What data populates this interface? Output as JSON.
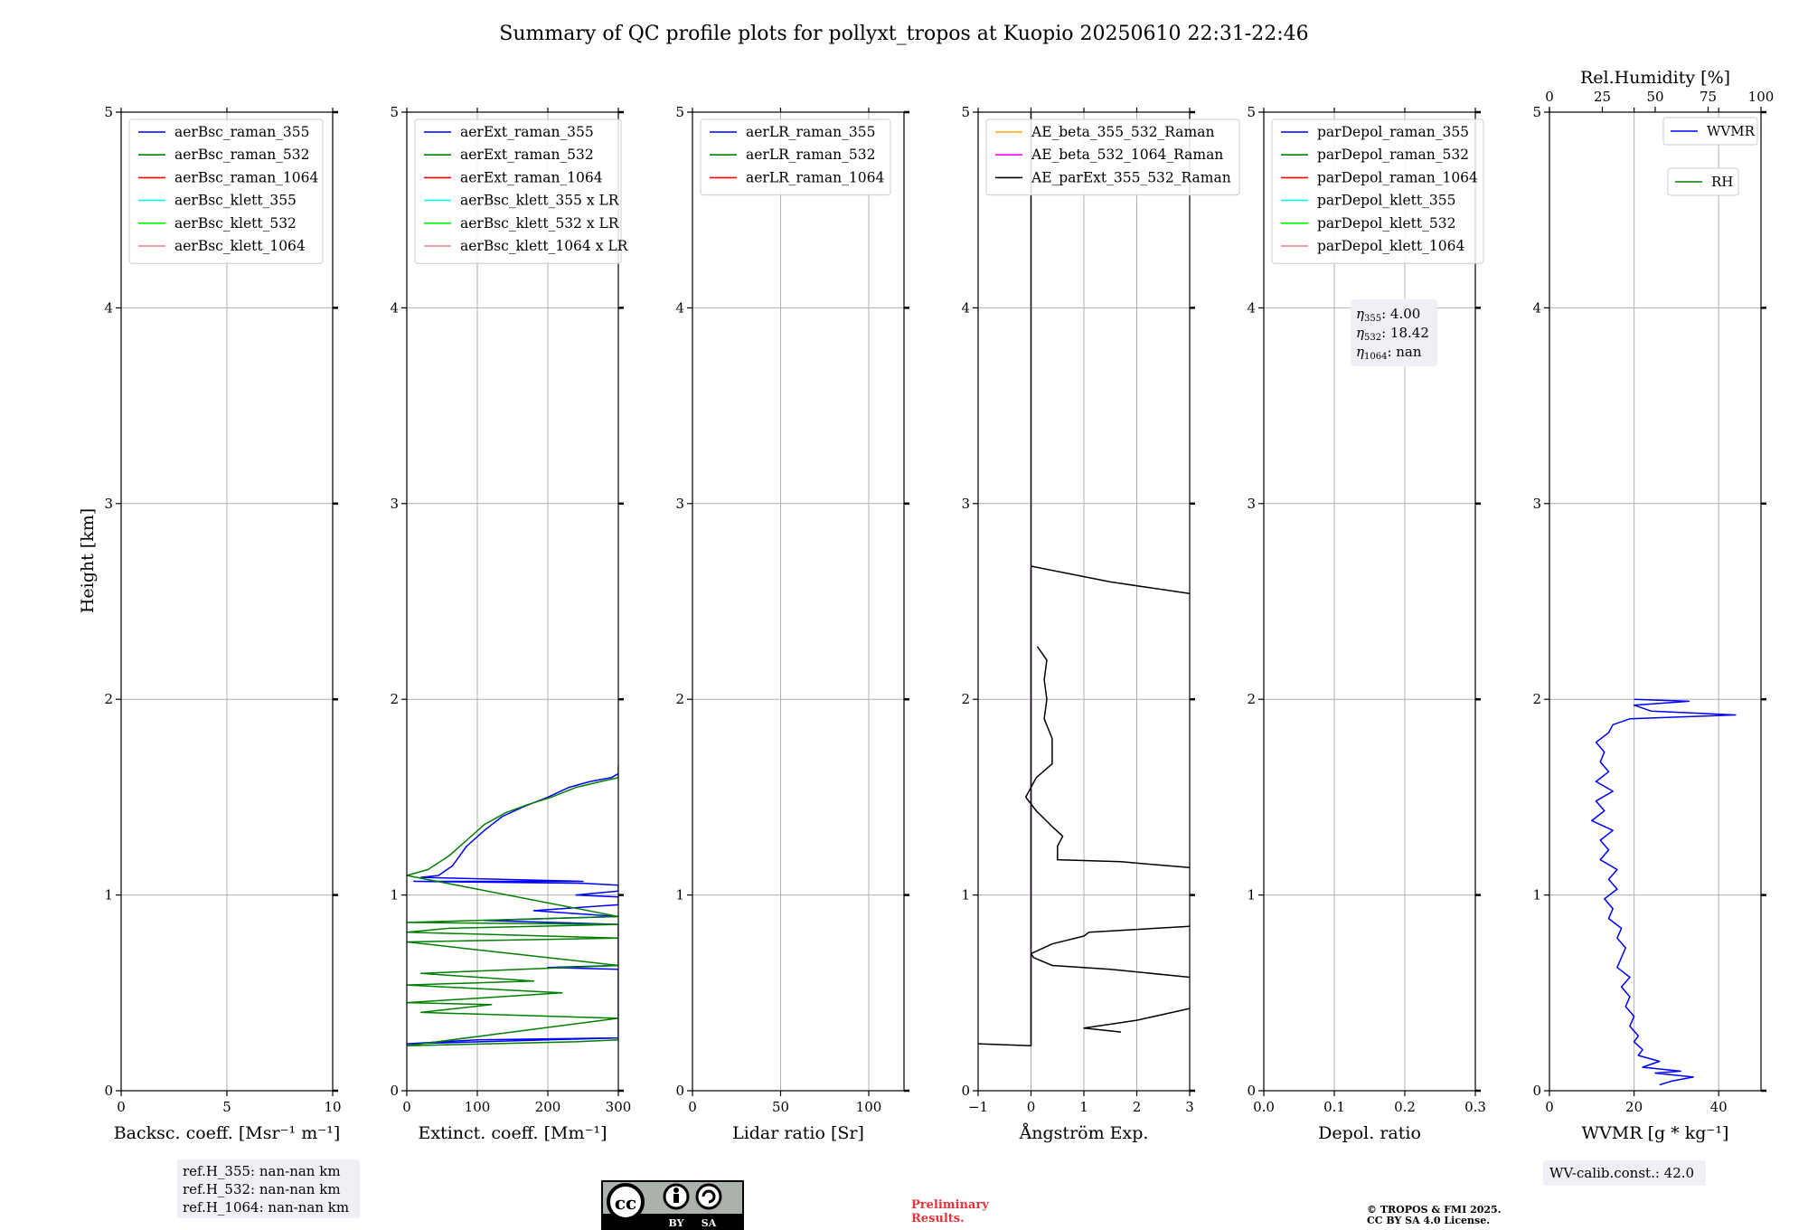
{
  "title": "Summary of QC profile plots for pollyxt_tropos at Kuopio 20250610 22:31-22:46",
  "y_axis": {
    "label": "Height [km]",
    "range": [
      0,
      5
    ],
    "ticks": [
      "0",
      "1",
      "2",
      "3",
      "4",
      "5"
    ]
  },
  "chart_data": [
    {
      "id": "bsc",
      "type": "line",
      "xlabel": "Backsc. coeff. [Msr⁻¹ m⁻¹]",
      "xlim": [
        0,
        10
      ],
      "xticks": [
        0,
        5,
        10
      ],
      "ylim": [
        0,
        5
      ],
      "legend": {
        "placement": "top-left",
        "entries": [
          {
            "name": "aerBsc_raman_355",
            "color": "#0000ff"
          },
          {
            "name": "aerBsc_raman_532",
            "color": "#008000"
          },
          {
            "name": "aerBsc_raman_1064",
            "color": "#ff0000"
          },
          {
            "name": "aerBsc_klett_355",
            "color": "#00ffff"
          },
          {
            "name": "aerBsc_klett_532",
            "color": "#00ff00"
          },
          {
            "name": "aerBsc_klett_1064",
            "color": "#f08080"
          }
        ]
      },
      "series": []
    },
    {
      "id": "ext",
      "type": "line",
      "xlabel": "Extinct. coeff. [Mm⁻¹]",
      "xlim": [
        0,
        300
      ],
      "xticks": [
        0,
        100,
        200,
        300
      ],
      "ylim": [
        0,
        5
      ],
      "legend": {
        "placement": "top-left",
        "entries": [
          {
            "name": "aerExt_raman_355",
            "color": "#0000ff"
          },
          {
            "name": "aerExt_raman_532",
            "color": "#008000"
          },
          {
            "name": "aerExt_raman_1064",
            "color": "#ff0000"
          },
          {
            "name": "aerBsc_klett_355 x LR",
            "color": "#00ffff"
          },
          {
            "name": "aerBsc_klett_532 x LR",
            "color": "#00ff00"
          },
          {
            "name": "aerBsc_klett_1064 x LR",
            "color": "#f08080"
          }
        ]
      },
      "series": [
        {
          "name": "aerExt_raman_355",
          "color": "#0000ff",
          "points": [
            [
              300,
              0.27
            ],
            [
              100,
              0.26
            ],
            [
              0,
              0.24
            ],
            [
              300,
              0.27
            ],
            [
              300,
              0.62
            ],
            [
              200,
              0.63
            ],
            [
              300,
              0.64
            ],
            [
              300,
              0.85
            ],
            [
              110,
              0.87
            ],
            [
              300,
              0.89
            ],
            [
              180,
              0.92
            ],
            [
              300,
              0.95
            ],
            [
              300,
              0.99
            ],
            [
              240,
              1.0
            ],
            [
              300,
              1.02
            ],
            [
              300,
              1.05
            ],
            [
              250,
              1.06
            ],
            [
              10,
              1.07
            ],
            [
              250,
              1.07
            ],
            [
              20,
              1.09
            ],
            [
              45,
              1.1
            ],
            [
              65,
              1.15
            ],
            [
              85,
              1.25
            ],
            [
              110,
              1.33
            ],
            [
              135,
              1.4
            ],
            [
              165,
              1.45
            ],
            [
              200,
              1.5
            ],
            [
              230,
              1.55
            ],
            [
              260,
              1.58
            ],
            [
              290,
              1.6
            ],
            [
              300,
              1.62
            ]
          ]
        },
        {
          "name": "aerExt_raman_532",
          "color": "#008000",
          "points": [
            [
              300,
              0.26
            ],
            [
              240,
              0.25
            ],
            [
              0,
              0.23
            ],
            [
              300,
              0.37
            ],
            [
              20,
              0.4
            ],
            [
              120,
              0.44
            ],
            [
              0,
              0.45
            ],
            [
              220,
              0.5
            ],
            [
              0,
              0.54
            ],
            [
              180,
              0.56
            ],
            [
              20,
              0.6
            ],
            [
              300,
              0.64
            ],
            [
              0,
              0.76
            ],
            [
              300,
              0.78
            ],
            [
              0,
              0.81
            ],
            [
              60,
              0.83
            ],
            [
              300,
              0.85
            ],
            [
              0,
              0.86
            ],
            [
              300,
              0.89
            ],
            [
              0,
              1.1
            ],
            [
              30,
              1.13
            ],
            [
              60,
              1.2
            ],
            [
              85,
              1.28
            ],
            [
              110,
              1.36
            ],
            [
              140,
              1.42
            ],
            [
              170,
              1.46
            ],
            [
              205,
              1.5
            ],
            [
              240,
              1.55
            ],
            [
              275,
              1.58
            ],
            [
              300,
              1.6
            ],
            [
              300,
              1.66
            ]
          ]
        }
      ]
    },
    {
      "id": "lr",
      "type": "line",
      "xlabel": "Lidar ratio [Sr]",
      "xlim": [
        0,
        120
      ],
      "xticks": [
        0,
        50,
        100
      ],
      "ylim": [
        0,
        5
      ],
      "legend": {
        "placement": "top-left",
        "entries": [
          {
            "name": "aerLR_raman_355",
            "color": "#0000ff"
          },
          {
            "name": "aerLR_raman_532",
            "color": "#008000"
          },
          {
            "name": "aerLR_raman_1064",
            "color": "#ff0000"
          }
        ]
      },
      "series": []
    },
    {
      "id": "ae",
      "type": "line",
      "xlabel": "Ångström Exp.",
      "xlim": [
        -1,
        3
      ],
      "xticks": [
        -1,
        0,
        1,
        2,
        3
      ],
      "xticklabels": [
        "−1",
        "0",
        "1",
        "2",
        "3"
      ],
      "ylim": [
        0,
        5
      ],
      "legend": {
        "placement": "top-left",
        "entries": [
          {
            "name": "AE_beta_355_532_Raman",
            "color": "#ffa500"
          },
          {
            "name": "AE_beta_532_1064_Raman",
            "color": "#ff00ff"
          },
          {
            "name": "AE_parExt_355_532_Raman",
            "color": "#000000"
          }
        ]
      },
      "series": [
        {
          "name": "AE_beta_532_1064_Raman",
          "color": "#ff00ff",
          "points": [
            [
              0,
              0.24
            ],
            [
              0,
              2.68
            ]
          ]
        },
        {
          "name": "AE_parExt_355_532_Raman",
          "color": "#000000",
          "points": [
            [
              -1,
              0.24
            ],
            [
              0,
              0.23
            ],
            [
              0,
              5.0
            ]
          ]
        },
        {
          "name": "AE_parExt_355_532_Raman b1",
          "color": "#000000",
          "points": [
            [
              1.7,
              0.3
            ],
            [
              1.0,
              0.32
            ],
            [
              2.0,
              0.36
            ],
            [
              3.0,
              0.42
            ]
          ]
        },
        {
          "name": "AE_parExt_355_532_Raman b2",
          "color": "#000000",
          "points": [
            [
              3.0,
              0.58
            ],
            [
              1.5,
              0.62
            ],
            [
              0.4,
              0.64
            ],
            [
              0.05,
              0.68
            ],
            [
              0.0,
              0.7
            ],
            [
              0.4,
              0.75
            ],
            [
              1.0,
              0.79
            ],
            [
              1.1,
              0.81
            ],
            [
              3.0,
              0.84
            ]
          ]
        },
        {
          "name": "AE_parExt_355_532_Raman b3",
          "color": "#000000",
          "points": [
            [
              3.0,
              1.14
            ],
            [
              1.7,
              1.17
            ],
            [
              0.5,
              1.18
            ],
            [
              0.5,
              1.25
            ],
            [
              0.6,
              1.3
            ],
            [
              0.4,
              1.35
            ],
            [
              0.1,
              1.43
            ],
            [
              -0.1,
              1.5
            ],
            [
              0.1,
              1.6
            ],
            [
              0.4,
              1.67
            ],
            [
              0.4,
              1.8
            ],
            [
              0.25,
              1.9
            ],
            [
              0.3,
              2.0
            ],
            [
              0.25,
              2.1
            ],
            [
              0.3,
              2.2
            ],
            [
              0.12,
              2.27
            ]
          ]
        },
        {
          "name": "AE_parExt_355_532_Raman b4",
          "color": "#000000",
          "points": [
            [
              3.0,
              2.54
            ],
            [
              1.5,
              2.6
            ],
            [
              0,
              2.68
            ]
          ]
        }
      ]
    },
    {
      "id": "depol",
      "type": "line",
      "xlabel": "Depol. ratio",
      "xlim": [
        0,
        0.3
      ],
      "xticks": [
        0,
        0.1,
        0.2,
        0.3
      ],
      "xticklabels": [
        "0.0",
        "0.1",
        "0.2",
        "0.3"
      ],
      "ylim": [
        0,
        5
      ],
      "legend": {
        "placement": "top-left",
        "entries": [
          {
            "name": "parDepol_raman_355",
            "color": "#0000ff"
          },
          {
            "name": "parDepol_raman_532",
            "color": "#008000"
          },
          {
            "name": "parDepol_raman_1064",
            "color": "#ff0000"
          },
          {
            "name": "parDepol_klett_355",
            "color": "#00ffff"
          },
          {
            "name": "parDepol_klett_532",
            "color": "#00ff00"
          },
          {
            "name": "parDepol_klett_1064",
            "color": "#f08080"
          }
        ]
      },
      "annotation": {
        "lines": [
          {
            "sym": "η",
            "sub": "355",
            "value": ": 4.00"
          },
          {
            "sym": "η",
            "sub": "532",
            "value": ": 18.42"
          },
          {
            "sym": "η",
            "sub": "1064",
            "value": ": nan"
          }
        ]
      },
      "series": []
    },
    {
      "id": "wv",
      "type": "line",
      "xlabel": "WVMR [g * kg⁻¹]",
      "xlim": [
        0,
        50
      ],
      "xticks": [
        0,
        20,
        40
      ],
      "ylim": [
        0,
        5
      ],
      "top_axis": {
        "label": "Rel.Humidity [%]",
        "range": [
          0,
          100
        ],
        "ticks": [
          0,
          25,
          50,
          75,
          100
        ]
      },
      "legend": {
        "placement": "top-right",
        "entries": [
          {
            "name": "WVMR",
            "color": "#0000ff"
          },
          {
            "name": "RH",
            "color": "#008000"
          }
        ]
      },
      "series": [
        {
          "name": "WVMR",
          "color": "#0000ff",
          "points": [
            [
              26,
              0.03
            ],
            [
              29,
              0.05
            ],
            [
              34,
              0.07
            ],
            [
              25,
              0.09
            ],
            [
              31,
              0.1
            ],
            [
              22,
              0.12
            ],
            [
              26,
              0.15
            ],
            [
              21,
              0.18
            ],
            [
              22,
              0.21
            ],
            [
              20,
              0.25
            ],
            [
              21,
              0.28
            ],
            [
              19,
              0.33
            ],
            [
              20,
              0.38
            ],
            [
              18,
              0.43
            ],
            [
              19,
              0.48
            ],
            [
              17,
              0.53
            ],
            [
              19,
              0.58
            ],
            [
              16,
              0.63
            ],
            [
              17,
              0.68
            ],
            [
              18,
              0.73
            ],
            [
              16,
              0.78
            ],
            [
              17,
              0.83
            ],
            [
              14,
              0.88
            ],
            [
              15,
              0.93
            ],
            [
              13,
              0.98
            ],
            [
              16,
              1.03
            ],
            [
              14,
              1.08
            ],
            [
              16,
              1.13
            ],
            [
              12,
              1.18
            ],
            [
              14,
              1.23
            ],
            [
              12,
              1.28
            ],
            [
              15,
              1.33
            ],
            [
              10,
              1.38
            ],
            [
              13,
              1.43
            ],
            [
              11,
              1.48
            ],
            [
              15,
              1.53
            ],
            [
              11,
              1.58
            ],
            [
              14,
              1.63
            ],
            [
              12,
              1.68
            ],
            [
              13,
              1.73
            ],
            [
              11,
              1.78
            ],
            [
              14,
              1.83
            ],
            [
              15,
              1.87
            ],
            [
              19,
              1.9
            ],
            [
              44,
              1.92
            ],
            [
              24,
              1.94
            ],
            [
              20,
              1.97
            ],
            [
              33,
              1.99
            ],
            [
              20,
              2.0
            ]
          ]
        }
      ]
    }
  ],
  "ref_box": {
    "lines": [
      "ref.H_355: nan-nan km",
      "ref.H_532: nan-nan km",
      "ref.H_1064: nan-nan km"
    ]
  },
  "cc_badge": {
    "by": "BY",
    "sa": "SA"
  },
  "preliminary": {
    "line1": "Preliminary",
    "line2": "Results."
  },
  "copyright": {
    "line1": "© TROPOS & FMI 2025.",
    "line2": "CC BY SA 4.0 License."
  },
  "wv_calib": "WV-calib.const.: 42.0",
  "colors": {
    "grid": "#b0b0b0",
    "legend_edge": "#cccccc",
    "note_bg": "#eef0f5",
    "preliminary": "#e8323c"
  }
}
